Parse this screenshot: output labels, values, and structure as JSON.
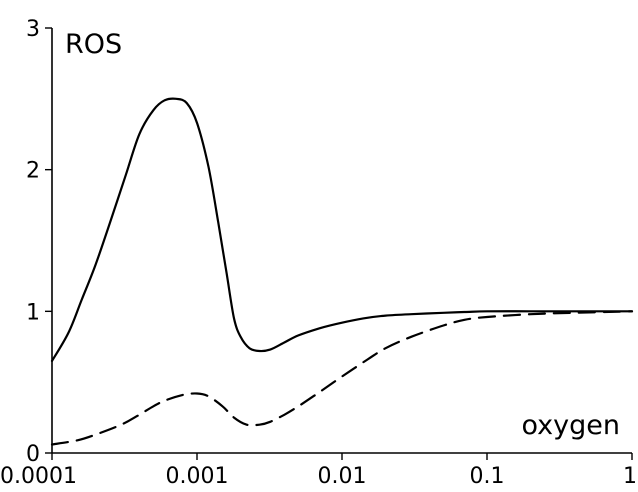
{
  "chart_data": {
    "type": "line",
    "title": "",
    "xlabel": "oxygen",
    "ylabel": "ROS",
    "xscale": "log",
    "xlim": [
      0.0001,
      1
    ],
    "ylim": [
      0,
      3
    ],
    "xticks": [
      {
        "value": 0.0001,
        "label": "0.0001"
      },
      {
        "value": 0.001,
        "label": "0.001"
      },
      {
        "value": 0.01,
        "label": "0.01"
      },
      {
        "value": 0.1,
        "label": "0.1"
      },
      {
        "value": 1,
        "label": "1"
      }
    ],
    "yticks": [
      {
        "value": 0,
        "label": "0"
      },
      {
        "value": 1,
        "label": "1"
      },
      {
        "value": 2,
        "label": "2"
      },
      {
        "value": 3,
        "label": "3"
      }
    ],
    "grid": false,
    "legend": "none",
    "series": [
      {
        "style": "solid",
        "color": "#000000",
        "x": [
          0.0001,
          0.00013,
          0.00016,
          0.0002,
          0.00025,
          0.00032,
          0.0004,
          0.0005,
          0.0006,
          0.00072,
          0.00085,
          0.001,
          0.0012,
          0.0014,
          0.0016,
          0.0018,
          0.002,
          0.0023,
          0.0027,
          0.0032,
          0.004,
          0.005,
          0.007,
          0.01,
          0.014,
          0.02,
          0.03,
          0.05,
          0.07,
          0.1,
          0.2,
          0.4,
          1
        ],
        "y": [
          0.65,
          0.85,
          1.08,
          1.33,
          1.62,
          1.95,
          2.25,
          2.42,
          2.49,
          2.5,
          2.47,
          2.33,
          2.02,
          1.63,
          1.27,
          0.95,
          0.82,
          0.74,
          0.72,
          0.73,
          0.78,
          0.83,
          0.88,
          0.92,
          0.95,
          0.97,
          0.98,
          0.99,
          0.995,
          1.0,
          1.0,
          1.0,
          1.0
        ]
      },
      {
        "style": "dashed",
        "color": "#000000",
        "x": [
          0.0001,
          0.00015,
          0.0002,
          0.0003,
          0.0004,
          0.0005,
          0.0006,
          0.0008,
          0.001,
          0.0012,
          0.0015,
          0.0018,
          0.0022,
          0.0027,
          0.0032,
          0.004,
          0.005,
          0.007,
          0.01,
          0.015,
          0.02,
          0.03,
          0.05,
          0.07,
          0.1,
          0.2,
          0.4,
          1
        ],
        "y": [
          0.06,
          0.09,
          0.13,
          0.2,
          0.27,
          0.33,
          0.37,
          0.41,
          0.42,
          0.4,
          0.33,
          0.25,
          0.2,
          0.2,
          0.22,
          0.27,
          0.33,
          0.43,
          0.54,
          0.66,
          0.74,
          0.82,
          0.9,
          0.94,
          0.96,
          0.98,
          0.99,
          1.0
        ]
      }
    ]
  }
}
